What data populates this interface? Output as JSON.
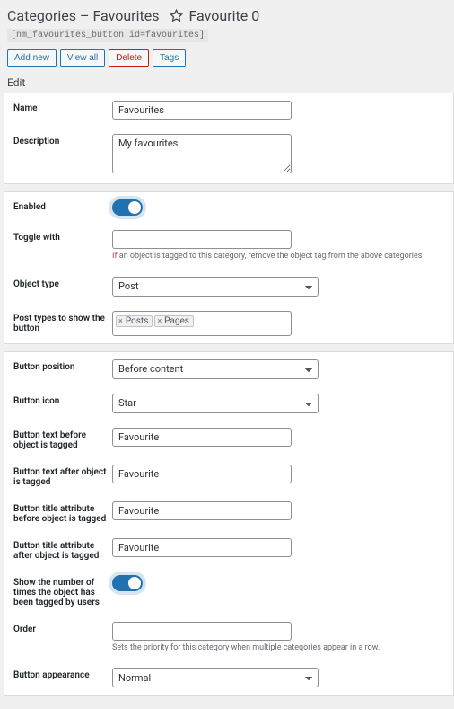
{
  "header": {
    "title": "Categories – Favourites",
    "favourite_label": "Favourite",
    "favourite_count": 0
  },
  "shortcode": "[nm_favourites_button id=favourites]",
  "buttons": {
    "add_new": "Add new",
    "view_all": "View all",
    "delete": "Delete",
    "tags": "Tags"
  },
  "edit_label": "Edit",
  "panel1": {
    "name_label": "Name",
    "name_value": "Favourites",
    "desc_label": "Description",
    "desc_value": "My favourites"
  },
  "panel2": {
    "enabled_label": "Enabled",
    "toggle_with_label": "Toggle with",
    "toggle_with_value": "",
    "toggle_with_help_prefix": "If",
    "toggle_with_help_rest": " an object is tagged to this category, remove the object tag from the above categories.",
    "object_type_label": "Object type",
    "object_type_value": "Post",
    "post_types_label": "Post types to show the button",
    "post_types_tags": [
      "Posts",
      "Pages"
    ]
  },
  "panel3": {
    "button_position_label": "Button position",
    "button_position_value": "Before content",
    "button_icon_label": "Button icon",
    "button_icon_value": "Star",
    "text_before_label": "Button text before object is tagged",
    "text_before_value": "Favourite",
    "text_after_label": "Button text after object is tagged",
    "text_after_value": "Favourite",
    "title_before_label": "Button title attribute before object is tagged",
    "title_before_value": "Favourite",
    "title_after_label": "Button title attribute after object is tagged",
    "title_after_value": "Favourite",
    "show_count_label": "Show the number of times the object has been tagged by users",
    "order_label": "Order",
    "order_value": "",
    "order_help": "Sets the priority for this category when multiple categories appear in a row.",
    "appearance_label": "Button appearance",
    "appearance_value": "Normal"
  }
}
